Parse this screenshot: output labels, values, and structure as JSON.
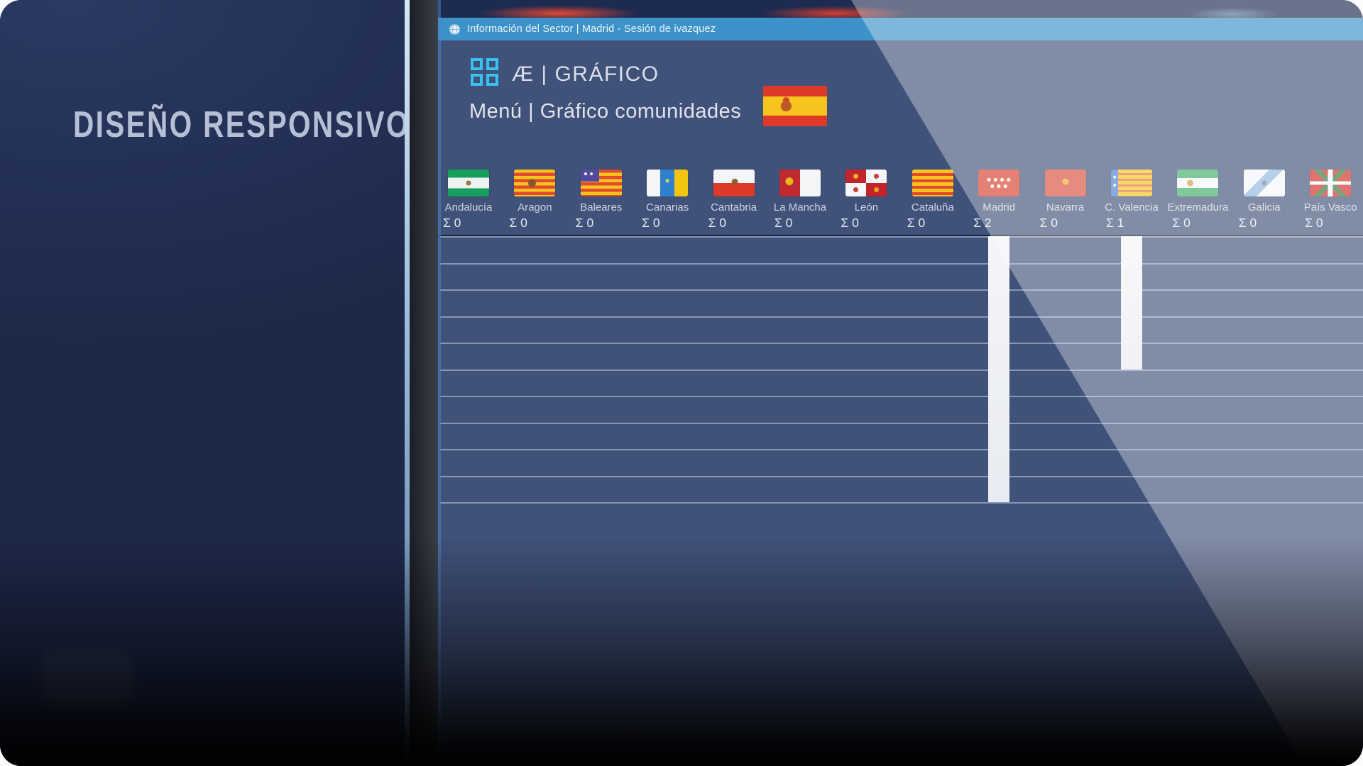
{
  "overlay": {
    "caption": "DISEÑO RESPONSIVO"
  },
  "window": {
    "titlebar": {
      "icon": "globe-icon",
      "title": "Información del Sector | Madrid - Sesión de ivazquez",
      "color": "#3d92c9"
    },
    "header": {
      "menu_icon": "grid-icon",
      "app_title": "Æ | GRÁFICO",
      "breadcrumb": "Menú | Gráfico comunidades",
      "country_flag_icon": "spain-flag-icon"
    },
    "sigma_prefix": "Σ",
    "communities": [
      {
        "id": "andalucia",
        "name": "Andalucía",
        "value": 0
      },
      {
        "id": "aragon",
        "name": "Aragon",
        "value": 0
      },
      {
        "id": "baleares",
        "name": "Baleares",
        "value": 0
      },
      {
        "id": "canarias",
        "name": "Canarias",
        "value": 0
      },
      {
        "id": "cantabria",
        "name": "Cantabria",
        "value": 0
      },
      {
        "id": "lamancha",
        "name": "La Mancha",
        "value": 0
      },
      {
        "id": "leon",
        "name": "León",
        "value": 0
      },
      {
        "id": "cataluna",
        "name": "Cataluña",
        "value": 0
      },
      {
        "id": "madrid",
        "name": "Madrid",
        "value": 2
      },
      {
        "id": "navarra",
        "name": "Navarra",
        "value": 0
      },
      {
        "id": "valencia",
        "name": "C. Valencia",
        "value": 1
      },
      {
        "id": "extremadura",
        "name": "Extremadura",
        "value": 0
      },
      {
        "id": "galicia",
        "name": "Galicia",
        "value": 0
      },
      {
        "id": "paisvasco",
        "name": "País Vasco",
        "value": 0
      }
    ]
  },
  "chart_data": {
    "type": "bar",
    "title": "Gráfico comunidades",
    "categories": [
      "Andalucía",
      "Aragon",
      "Baleares",
      "Canarias",
      "Cantabria",
      "La Mancha",
      "León",
      "Cataluña",
      "Madrid",
      "Navarra",
      "C. Valencia",
      "Extremadura",
      "Galicia",
      "País Vasco"
    ],
    "values": [
      0,
      0,
      0,
      0,
      0,
      0,
      0,
      0,
      2,
      0,
      1,
      0,
      0,
      0
    ],
    "xlabel": "",
    "ylabel": "Σ",
    "ylim": [
      0,
      2
    ],
    "gridline_count": 11,
    "grid": true,
    "legend_position": "none",
    "orientation": "bars-hang-from-top",
    "bar_color": "#eef0f5"
  },
  "colors": {
    "accent_cyan": "#38c0ef",
    "titlebar_blue": "#3d92c9",
    "app_background": "#40517a",
    "left_panel_navy": "#243157",
    "text_light": "#dbdfe6",
    "bar_white": "#eef0f5"
  }
}
